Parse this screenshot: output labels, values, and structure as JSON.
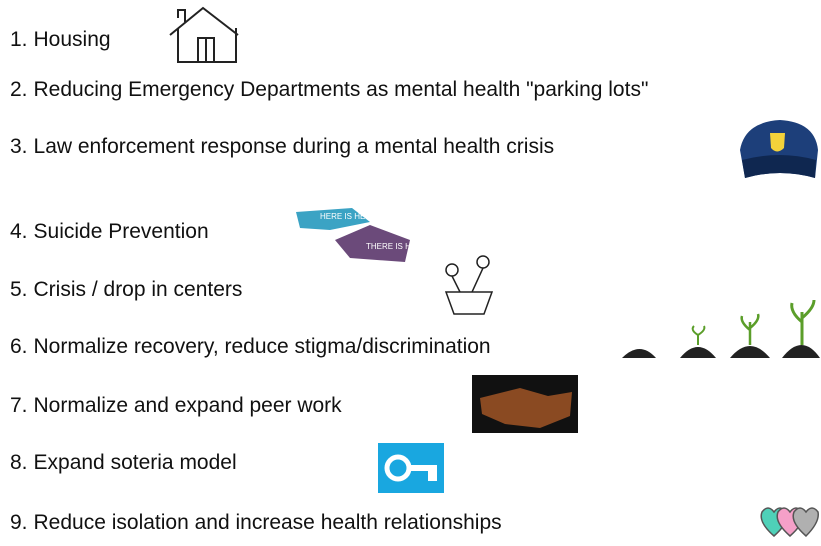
{
  "items": [
    {
      "number": "1.",
      "text": "Housing"
    },
    {
      "number": "2.",
      "text": "Reducing Emergency Departments as mental health \"parking lots\""
    },
    {
      "number": "3.",
      "text": "Law enforcement response during a mental health crisis"
    },
    {
      "number": "4.",
      "text": "Suicide Prevention"
    },
    {
      "number": "5.",
      "text": "Crisis / drop in centers"
    },
    {
      "number": "6.",
      "text": "Normalize recovery, reduce stigma/discrimination"
    },
    {
      "number": "7.",
      "text": "Normalize and expand peer work"
    },
    {
      "number": "8.",
      "text": "Expand soteria model"
    },
    {
      "number": "9.",
      "text": "Reduce isolation and increase health relationships"
    }
  ],
  "icon_texts": {
    "help": "HERE IS HELP",
    "hope": "THERE IS HOPE"
  }
}
